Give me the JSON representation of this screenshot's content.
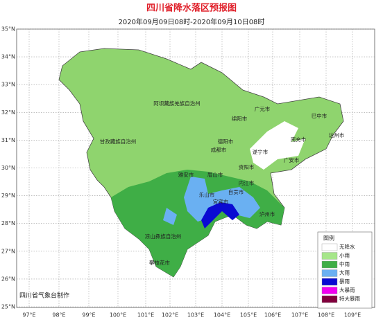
{
  "header": {
    "title": "四川省降水落区预报图",
    "subtitle": "2020年09月09日08时-2020年09月10日08时"
  },
  "latitude_labels": [
    "35°N",
    "34°N",
    "33°N",
    "32°N",
    "31°N",
    "30°N",
    "29°N",
    "28°N",
    "27°N",
    "26°N",
    "25°N"
  ],
  "longitude_labels": [
    "97°E",
    "98°E",
    "99°E",
    "100°E",
    "101°E",
    "102°E",
    "103°E",
    "104°E",
    "105°E",
    "106°E",
    "107°E",
    "108°E",
    "109°E"
  ],
  "cities": [
    "阿坝藏族羌族自治州",
    "甘孜藏族自治州",
    "广元市",
    "巴中市",
    "绵阳市",
    "德阳市",
    "南充市",
    "达州市",
    "成都市",
    "遂宁市",
    "广安市",
    "资阳市",
    "雅安市",
    "眉山市",
    "内江市",
    "乐山市",
    "自贡市",
    "泸州市",
    "宜宾市",
    "凉山彝族自治州",
    "攀枝花市"
  ],
  "legend": {
    "title": "图例",
    "items": [
      {
        "label": "无降水",
        "color": "#ffffff"
      },
      {
        "label": "小雨",
        "color": "#a6e68a"
      },
      {
        "label": "中雨",
        "color": "#3fae46"
      },
      {
        "label": "大雨",
        "color": "#6ab0f2"
      },
      {
        "label": "暴雨",
        "color": "#0a0ad2"
      },
      {
        "label": "大暴雨",
        "color": "#f000f0"
      },
      {
        "label": "特大暴雨",
        "color": "#80003c"
      }
    ]
  },
  "credit": "四川省气象台制作"
}
